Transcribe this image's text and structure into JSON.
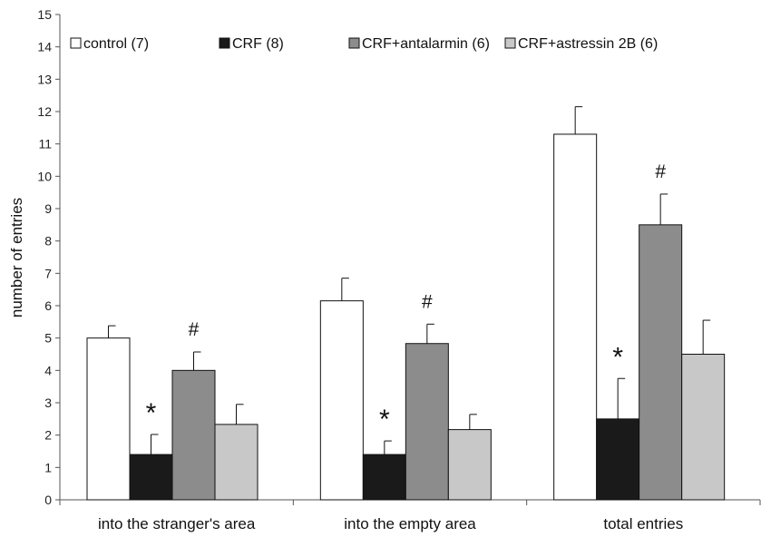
{
  "chart_data": {
    "type": "bar",
    "title": "",
    "xlabel": "",
    "ylabel": "number of entries",
    "ylim": [
      0,
      15
    ],
    "yticks": [
      0,
      1,
      2,
      3,
      4,
      5,
      6,
      7,
      8,
      9,
      10,
      11,
      12,
      13,
      14,
      15
    ],
    "categories": [
      "into the stranger's area",
      "into the empty area",
      "total entries"
    ],
    "legend_position": "top",
    "series": [
      {
        "name": "control (7)",
        "color": "#ffffff",
        "values": [
          5.0,
          6.15,
          11.3
        ],
        "errors": [
          0.38,
          0.7,
          0.85
        ]
      },
      {
        "name": "CRF (8)",
        "color": "#1a1a1a",
        "values": [
          1.4,
          1.4,
          2.5
        ],
        "errors": [
          0.62,
          0.42,
          1.25
        ]
      },
      {
        "name": "CRF+antalarmin (6)",
        "color": "#8c8c8c",
        "values": [
          4.0,
          4.83,
          8.5
        ],
        "errors": [
          0.57,
          0.6,
          0.95
        ]
      },
      {
        "name": "CRF+astressin 2B (6)",
        "color": "#c8c8c8",
        "values": [
          2.33,
          2.17,
          4.5
        ],
        "errors": [
          0.62,
          0.47,
          1.05
        ]
      }
    ],
    "annotations": [
      {
        "text": "*",
        "category": 0,
        "series": 1
      },
      {
        "text": "#",
        "category": 0,
        "series": 2
      },
      {
        "text": "*",
        "category": 1,
        "series": 1
      },
      {
        "text": "#",
        "category": 1,
        "series": 2
      },
      {
        "text": "*",
        "category": 2,
        "series": 1
      },
      {
        "text": "#",
        "category": 2,
        "series": 2
      }
    ]
  }
}
